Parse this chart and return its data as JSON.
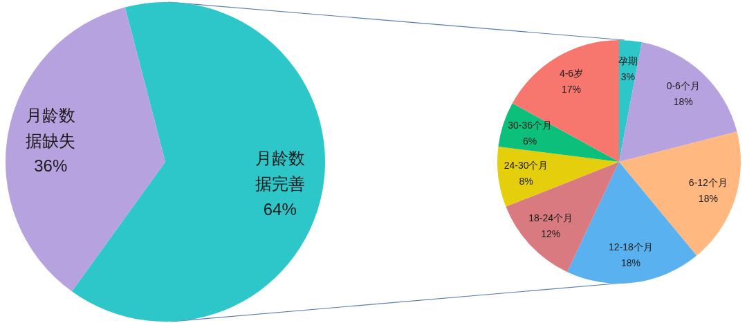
{
  "chart_data": [
    {
      "type": "pie",
      "categories": [
        "月龄数据完善",
        "月龄数据缺失"
      ],
      "values": [
        64,
        36
      ],
      "colors": [
        "#2ec7c9",
        "#b6a2de"
      ],
      "value_labels": [
        "64%",
        "36%"
      ]
    },
    {
      "type": "pie",
      "categories": [
        "孕期",
        "0-6个月",
        "6-12个月",
        "12-18个月",
        "18-24个月",
        "24-30个月",
        "30-36个月",
        "4-6岁"
      ],
      "values": [
        3,
        18,
        18,
        18,
        12,
        8,
        6,
        17
      ],
      "colors": [
        "#2ec7c9",
        "#b6a2de",
        "#ffb980",
        "#5ab1ef",
        "#d87a80",
        "#e5cf0d",
        "#0cc07c",
        "#f7776f"
      ],
      "value_labels": [
        "3%",
        "18%",
        "18%",
        "18%",
        "12%",
        "8%",
        "6%",
        "17%"
      ]
    }
  ]
}
